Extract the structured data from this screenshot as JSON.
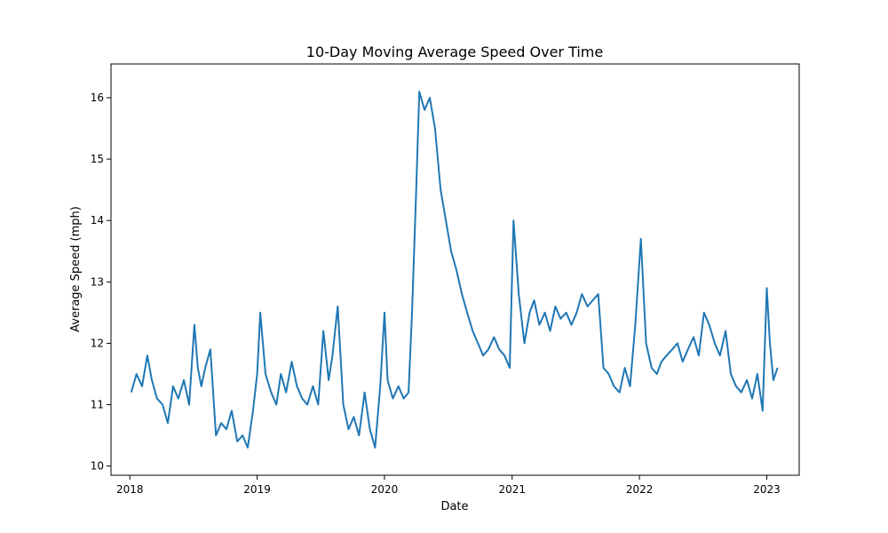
{
  "chart_data": {
    "type": "line",
    "title": "10-Day Moving Average Speed Over Time",
    "xlabel": "Date",
    "ylabel": "Average Speed (mph)",
    "xlim": [
      "2017-11-08",
      "2023-04-04"
    ],
    "ylim": [
      9.85,
      16.55
    ],
    "x_ticks": [
      "2018",
      "2019",
      "2020",
      "2021",
      "2022",
      "2023"
    ],
    "y_ticks": [
      10,
      11,
      12,
      13,
      14,
      15,
      16
    ],
    "grid": false,
    "legend": "none",
    "colors": {
      "line": "#1f77b4"
    },
    "series": [
      {
        "x": [
          "2018-01-05",
          "2018-01-20",
          "2018-02-05",
          "2018-02-20",
          "2018-03-05",
          "2018-03-20",
          "2018-04-05",
          "2018-04-20",
          "2018-05-05",
          "2018-05-20",
          "2018-06-05",
          "2018-06-20",
          "2018-07-05",
          "2018-07-15",
          "2018-07-25",
          "2018-08-05",
          "2018-08-20",
          "2018-09-05",
          "2018-09-20",
          "2018-10-05",
          "2018-10-20",
          "2018-11-05",
          "2018-11-20",
          "2018-12-05",
          "2018-12-20",
          "2019-01-01",
          "2019-01-10",
          "2019-01-25",
          "2019-02-10",
          "2019-02-25",
          "2019-03-10",
          "2019-03-25",
          "2019-04-10",
          "2019-04-25",
          "2019-05-10",
          "2019-05-25",
          "2019-06-10",
          "2019-06-25",
          "2019-07-10",
          "2019-07-25",
          "2019-08-05",
          "2019-08-20",
          "2019-09-05",
          "2019-09-20",
          "2019-10-05",
          "2019-10-20",
          "2019-11-05",
          "2019-11-20",
          "2019-12-05",
          "2019-12-20",
          "2020-01-01",
          "2020-01-10",
          "2020-01-25",
          "2020-02-10",
          "2020-02-25",
          "2020-03-10",
          "2020-03-20",
          "2020-04-01",
          "2020-04-10",
          "2020-04-25",
          "2020-05-10",
          "2020-05-25",
          "2020-06-10",
          "2020-06-25",
          "2020-07-10",
          "2020-07-25",
          "2020-08-10",
          "2020-08-25",
          "2020-09-10",
          "2020-09-25",
          "2020-10-10",
          "2020-10-25",
          "2020-11-10",
          "2020-11-25",
          "2020-12-10",
          "2020-12-25",
          "2021-01-05",
          "2021-01-20",
          "2021-02-05",
          "2021-02-20",
          "2021-03-05",
          "2021-03-20",
          "2021-04-05",
          "2021-04-20",
          "2021-05-05",
          "2021-05-20",
          "2021-06-05",
          "2021-06-20",
          "2021-07-05",
          "2021-07-20",
          "2021-08-05",
          "2021-08-20",
          "2021-09-05",
          "2021-09-20",
          "2021-10-05",
          "2021-10-20",
          "2021-11-05",
          "2021-11-20",
          "2021-12-05",
          "2021-12-20",
          "2022-01-05",
          "2022-01-20",
          "2022-02-05",
          "2022-02-20",
          "2022-03-05",
          "2022-03-20",
          "2022-04-05",
          "2022-04-20",
          "2022-05-05",
          "2022-05-20",
          "2022-06-05",
          "2022-06-20",
          "2022-07-05",
          "2022-07-20",
          "2022-08-05",
          "2022-08-20",
          "2022-09-05",
          "2022-09-20",
          "2022-10-05",
          "2022-10-20",
          "2022-11-05",
          "2022-11-20",
          "2022-12-05",
          "2022-12-20",
          "2023-01-01",
          "2023-01-10",
          "2023-01-20",
          "2023-02-01"
        ],
        "values": [
          11.2,
          11.5,
          11.3,
          11.8,
          11.4,
          11.1,
          11.0,
          10.7,
          11.3,
          11.1,
          11.4,
          11.0,
          12.3,
          11.6,
          11.3,
          11.6,
          11.9,
          10.5,
          10.7,
          10.6,
          10.9,
          10.4,
          10.5,
          10.3,
          10.9,
          11.5,
          12.5,
          11.5,
          11.2,
          11.0,
          11.5,
          11.2,
          11.7,
          11.3,
          11.1,
          11.0,
          11.3,
          11.0,
          12.2,
          11.4,
          11.8,
          12.6,
          11.0,
          10.6,
          10.8,
          10.5,
          11.2,
          10.6,
          10.3,
          11.3,
          12.5,
          11.4,
          11.1,
          11.3,
          11.1,
          11.2,
          12.5,
          14.5,
          16.1,
          15.8,
          16.0,
          15.5,
          14.5,
          14.0,
          13.5,
          13.2,
          12.8,
          12.5,
          12.2,
          12.0,
          11.8,
          11.9,
          12.1,
          11.9,
          11.8,
          11.6,
          14.0,
          12.8,
          12.0,
          12.5,
          12.7,
          12.3,
          12.5,
          12.2,
          12.6,
          12.4,
          12.5,
          12.3,
          12.5,
          12.8,
          12.6,
          12.7,
          12.8,
          11.6,
          11.5,
          11.3,
          11.2,
          11.6,
          11.3,
          12.3,
          13.7,
          12.0,
          11.6,
          11.5,
          11.7,
          11.8,
          11.9,
          12.0,
          11.7,
          11.9,
          12.1,
          11.8,
          12.5,
          12.3,
          12.0,
          11.8,
          12.2,
          11.5,
          11.3,
          11.2,
          11.4,
          11.1,
          11.5,
          10.9,
          12.9,
          12.0,
          11.4,
          11.6
        ]
      }
    ]
  }
}
